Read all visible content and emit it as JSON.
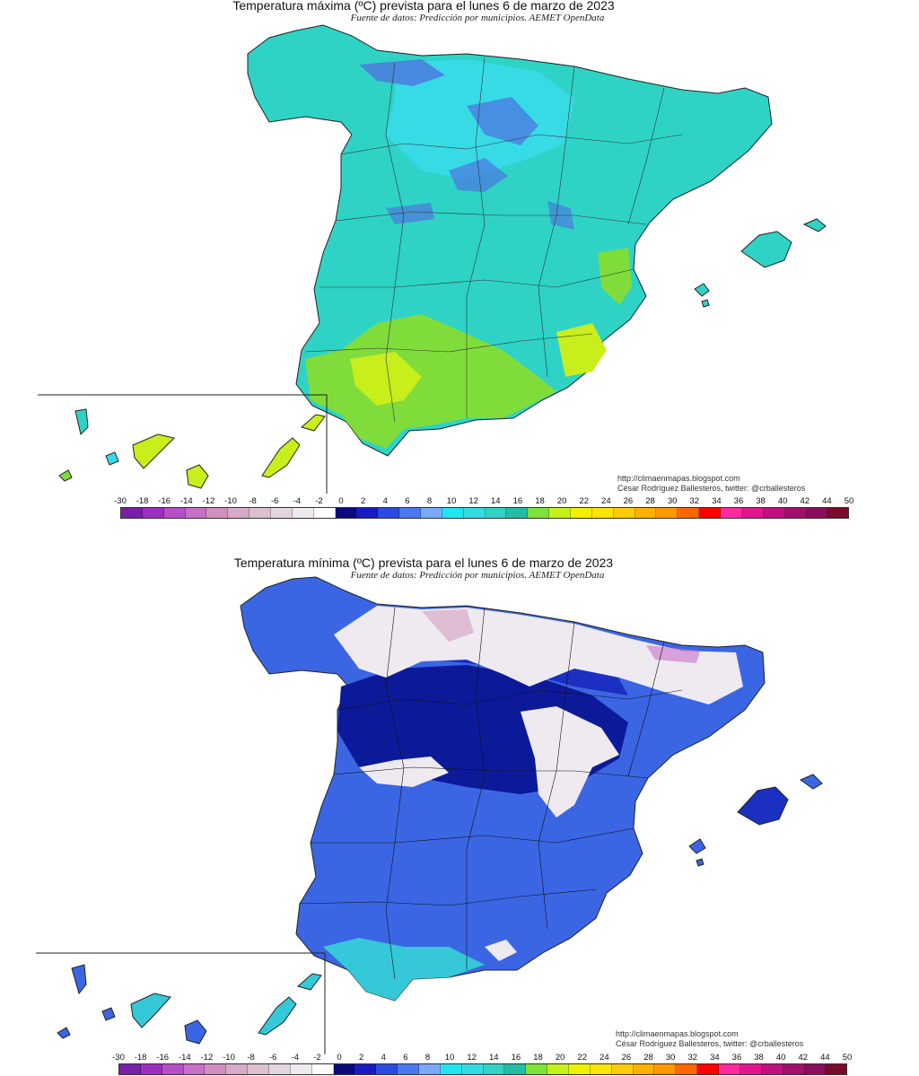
{
  "maps": [
    {
      "title": "Temperatura máxima (ºC) prevista para el lunes 6 de marzo de 2023",
      "subtitle": "Fuente de datos: Predicción por municipios. AEMET OpenData",
      "credit_url": "http://climaenmapas.blogspot.com",
      "credit_author": "César Rodríguez Ballesteros, twitter: @crballesteros"
    },
    {
      "title": "Temperatura mínima (ºC) prevista para el lunes 6 de marzo de 2023",
      "subtitle": "Fuente de datos: Predicción por municipios. AEMET OpenData",
      "credit_url": "http://climaenmapas.blogspot.com",
      "credit_author": "César Rodríguez Ballesteros, twitter: @crballesteros"
    }
  ],
  "legend": {
    "labels": [
      "-30",
      "-18",
      "-16",
      "-14",
      "-12",
      "-10",
      "-8",
      "-6",
      "-4",
      "-2",
      "0",
      "2",
      "4",
      "6",
      "8",
      "10",
      "12",
      "14",
      "16",
      "18",
      "20",
      "22",
      "24",
      "26",
      "28",
      "30",
      "32",
      "34",
      "36",
      "38",
      "40",
      "42",
      "44",
      "50"
    ],
    "colors": [
      "#7a1fa8",
      "#9b2fc0",
      "#b54fc8",
      "#c86fc9",
      "#d08fbf",
      "#d8a9c8",
      "#dcc0cf",
      "#e3d6df",
      "#eeeaee",
      "#ffffff",
      "#0a0a7a",
      "#1a1ac2",
      "#2a4bdf",
      "#4a78ef",
      "#7aa9f7",
      "#21e4ef",
      "#35dbe0",
      "#33d0c5",
      "#23bca6",
      "#7ee23a",
      "#c6f01a",
      "#f0f000",
      "#ffe20a",
      "#ffca0a",
      "#ffb000",
      "#ff9900",
      "#ff6600",
      "#ff0000",
      "#ff2aa0",
      "#e0158f",
      "#c01080",
      "#a0106a",
      "#8a0c5a",
      "#7a0a2a"
    ]
  },
  "maps_visual": {
    "max_fill": [
      "#2ed3c6",
      "#37dbe6",
      "#7fdc3a",
      "#c8ee1c",
      "#4f6fe0"
    ],
    "min_fill": [
      "#1b2fc0",
      "#3a66e4",
      "#0c1a9a",
      "#eeeaf0",
      "#35c8d8"
    ]
  }
}
